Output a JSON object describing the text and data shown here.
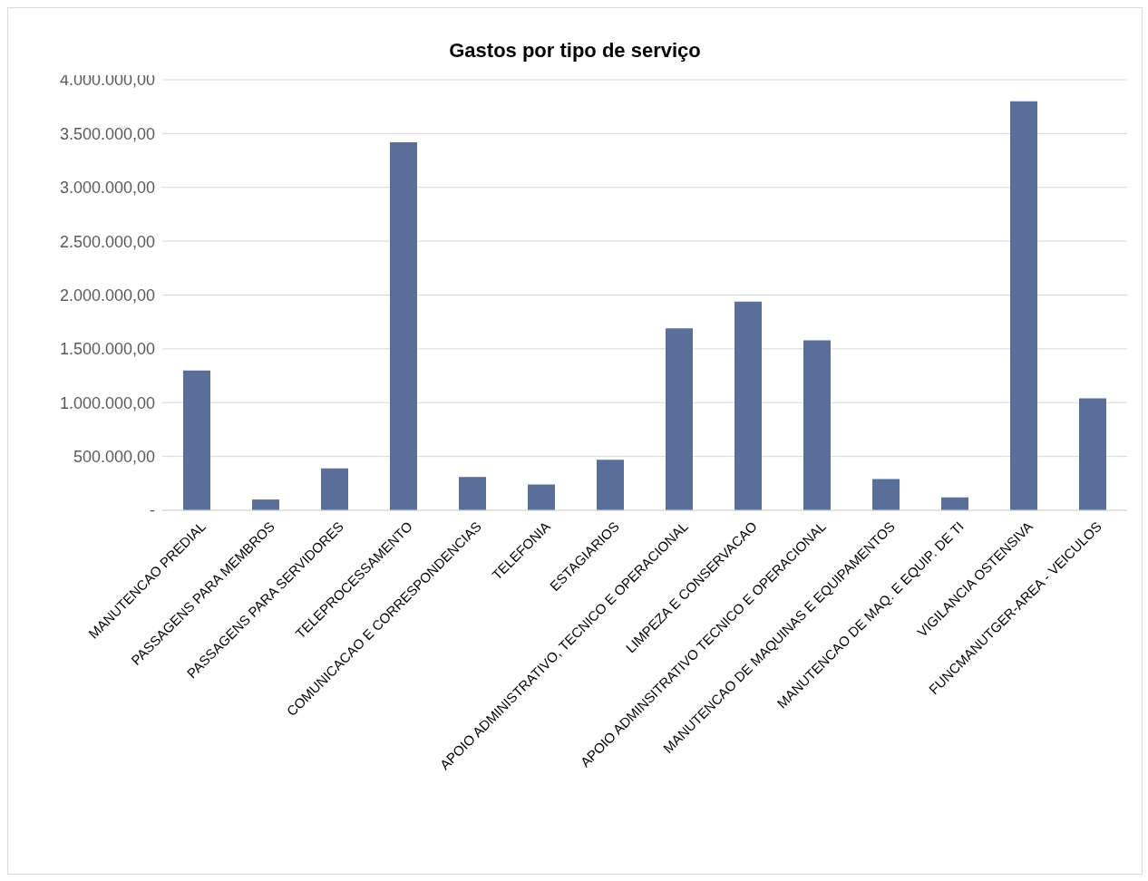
{
  "chart_data": {
    "type": "bar",
    "title": "Gastos por tipo de serviço",
    "categories": [
      "MANUTENCAO PREDIAL",
      "PASSAGENS PARA MEMBROS",
      "PASSAGENS PARA SERVIDORES",
      "TELEPROCESSAMENTO",
      "COMUNICACAO E CORRESPONDENCIAS",
      "TELEFONIA",
      "ESTAGIARIOS",
      "APOIO ADMINISTRATIVO, TECNICO E OPERACIONAL",
      "LIMPEZA E CONSERVACAO",
      "APOIO ADMINSITRATIVO TECNICO E OPERACIONAL",
      "MANUTENCAO DE MAQUINAS E EQUIPAMENTOS",
      "MANUTENCAO DE MAQ. E EQUIP. DE TI",
      "VIGILANCIA OSTENSIVA",
      "FUNCMANUTGER-AREA - VEICULOS"
    ],
    "values": [
      1300000,
      100000,
      390000,
      3420000,
      310000,
      240000,
      470000,
      1690000,
      1940000,
      1580000,
      290000,
      120000,
      3800000,
      1040000
    ],
    "color": "#5a6e9a",
    "ylim": [
      0,
      4000000
    ],
    "yticks": [
      {
        "value": 0,
        "label": "-"
      },
      {
        "value": 500000,
        "label": "500.000,00"
      },
      {
        "value": 1000000,
        "label": "1.000.000,00"
      },
      {
        "value": 1500000,
        "label": "1.500.000,00"
      },
      {
        "value": 2000000,
        "label": "2.000.000,00"
      },
      {
        "value": 2500000,
        "label": "2.500.000,00"
      },
      {
        "value": 3000000,
        "label": "3.000.000,00"
      },
      {
        "value": 3500000,
        "label": "3.500.000,00"
      },
      {
        "value": 4000000,
        "label": "4.000.000,00"
      }
    ],
    "grid": "y"
  }
}
